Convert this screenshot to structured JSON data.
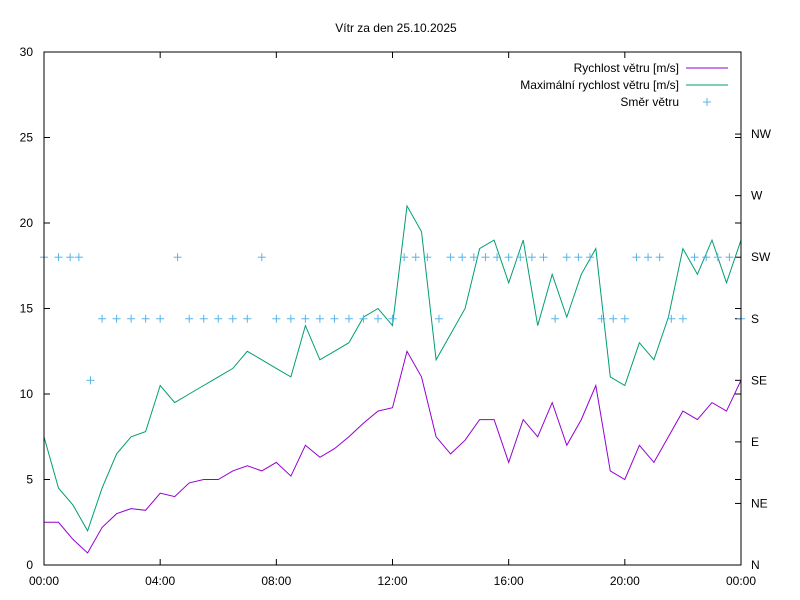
{
  "chart_data": {
    "type": "line",
    "title": "Vítr za den 25.10.2025",
    "xlabel": "",
    "ylabel": "",
    "x_unit": "hours",
    "xlim": [
      0,
      24
    ],
    "ylim": [
      0,
      30
    ],
    "y_ticks": [
      0,
      5,
      10,
      15,
      20,
      25,
      30
    ],
    "x_ticks": [
      {
        "value": 0,
        "label": "00:00"
      },
      {
        "value": 4,
        "label": "04:00"
      },
      {
        "value": 8,
        "label": "08:00"
      },
      {
        "value": 12,
        "label": "12:00"
      },
      {
        "value": 16,
        "label": "16:00"
      },
      {
        "value": 20,
        "label": "20:00"
      },
      {
        "value": 24,
        "label": "00:00"
      }
    ],
    "y2_ticks": [
      {
        "value": 0,
        "label": "N"
      },
      {
        "value": 45,
        "label": "NE"
      },
      {
        "value": 90,
        "label": "E"
      },
      {
        "value": 135,
        "label": "SE"
      },
      {
        "value": 180,
        "label": "S"
      },
      {
        "value": 225,
        "label": "SW"
      },
      {
        "value": 270,
        "label": "W"
      },
      {
        "value": 315,
        "label": "NW"
      }
    ],
    "y2lim": [
      0,
      375
    ],
    "legend_position": "top-right",
    "grid": false,
    "series": [
      {
        "name": "Rychlost větru [m/s]",
        "color": "#9400d3",
        "style": "line",
        "x": [
          0,
          0.5,
          1,
          1.5,
          2,
          2.5,
          3,
          3.5,
          4,
          4.5,
          5,
          5.5,
          6,
          6.5,
          7,
          7.5,
          8,
          8.5,
          9,
          9.5,
          10,
          10.5,
          11,
          11.5,
          12,
          12.5,
          13,
          13.5,
          14,
          14.5,
          15,
          15.5,
          16,
          16.5,
          17,
          17.5,
          18,
          18.5,
          19,
          19.5,
          20,
          20.5,
          21,
          21.5,
          22,
          22.5,
          23,
          23.5,
          24
        ],
        "values": [
          2.5,
          2.5,
          1.5,
          0.7,
          2.2,
          3.0,
          3.3,
          3.2,
          4.2,
          4.0,
          4.8,
          5.0,
          5.0,
          5.5,
          5.8,
          5.5,
          6.0,
          5.2,
          7.0,
          6.3,
          6.8,
          7.5,
          8.3,
          9.0,
          9.2,
          12.5,
          11.0,
          7.5,
          6.5,
          7.3,
          8.5,
          8.5,
          6.0,
          8.5,
          7.5,
          9.5,
          7.0,
          8.5,
          10.5,
          5.5,
          5.0,
          7.0,
          6.0,
          7.5,
          9.0,
          8.5,
          9.5,
          9.0,
          10.8
        ]
      },
      {
        "name": "Maximální rychlost větru [m/s]",
        "color": "#009e73",
        "style": "line",
        "x": [
          0,
          0.5,
          1,
          1.5,
          2,
          2.5,
          3,
          3.5,
          4,
          4.5,
          5,
          5.5,
          6,
          6.5,
          7,
          7.5,
          8,
          8.5,
          9,
          9.5,
          10,
          10.5,
          11,
          11.5,
          12,
          12.5,
          13,
          13.5,
          14,
          14.5,
          15,
          15.5,
          16,
          16.5,
          17,
          17.5,
          18,
          18.5,
          19,
          19.5,
          20,
          20.5,
          21,
          21.5,
          22,
          22.5,
          23,
          23.5,
          24
        ],
        "values": [
          7.5,
          4.5,
          3.5,
          2.0,
          4.5,
          6.5,
          7.5,
          7.8,
          10.5,
          9.5,
          10.0,
          10.5,
          11.0,
          11.5,
          12.5,
          12.0,
          11.5,
          11.0,
          14.0,
          12.0,
          12.5,
          13.0,
          14.5,
          15.0,
          14.0,
          21.0,
          19.5,
          12.0,
          13.5,
          15.0,
          18.5,
          19.0,
          16.5,
          19.0,
          14.0,
          17.0,
          14.5,
          17.0,
          18.5,
          11.0,
          10.5,
          13.0,
          12.0,
          14.5,
          18.5,
          17.0,
          19.0,
          16.5,
          19.0
        ]
      },
      {
        "name": "Směr větru",
        "color": "#56b4e9",
        "style": "points",
        "marker": "+",
        "axis": "y2",
        "x": [
          0,
          0.5,
          0.9,
          1.2,
          1.6,
          2,
          2.5,
          3,
          3.5,
          4,
          4.6,
          5,
          5.5,
          6,
          6.5,
          7,
          7.5,
          8,
          8.5,
          9,
          9.5,
          10,
          10.5,
          11,
          11.5,
          12,
          12.4,
          12.8,
          13.2,
          13.6,
          14,
          14.4,
          14.8,
          15.2,
          15.6,
          16,
          16.4,
          16.8,
          17.2,
          17.6,
          18,
          18.4,
          18.8,
          19.2,
          19.6,
          20,
          20.4,
          20.8,
          21.2,
          21.6,
          22,
          22.4,
          22.8,
          23.2,
          23.6,
          24
        ],
        "values": [
          225,
          225,
          225,
          225,
          135,
          180,
          180,
          180,
          180,
          180,
          225,
          180,
          180,
          180,
          180,
          180,
          225,
          180,
          180,
          180,
          180,
          180,
          180,
          180,
          180,
          180,
          225,
          225,
          225,
          180,
          225,
          225,
          225,
          225,
          225,
          225,
          225,
          225,
          225,
          180,
          225,
          225,
          225,
          180,
          180,
          180,
          225,
          225,
          225,
          180,
          180,
          225,
          225,
          225,
          225,
          180
        ]
      }
    ]
  }
}
